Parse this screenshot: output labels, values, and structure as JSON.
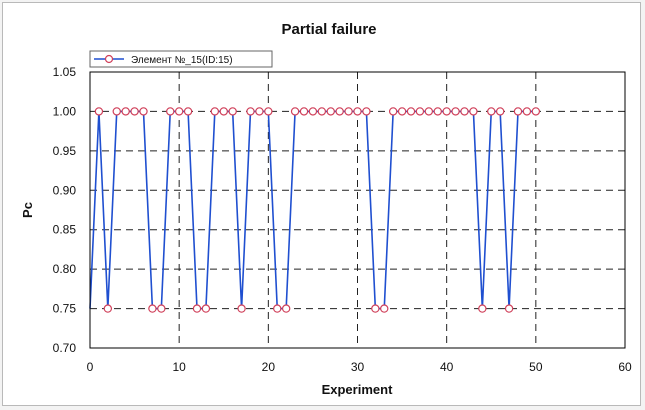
{
  "chart_data": {
    "type": "line",
    "title": "Partial failure",
    "xlabel": "Experiment",
    "ylabel": "Pc",
    "xlim": [
      0,
      60
    ],
    "ylim": [
      0.7,
      1.05
    ],
    "x_ticks": [
      "0",
      "10",
      "20",
      "30",
      "40",
      "50",
      "60"
    ],
    "y_ticks": [
      "0.70",
      "0.75",
      "0.80",
      "0.85",
      "0.90",
      "0.95",
      "1.00",
      "1.05"
    ],
    "grid": true,
    "legend_position": "top-left",
    "series": [
      {
        "name": "Элемент №_15(ID:15)",
        "line_color": "#1f4fd0",
        "marker_color": "#d0405a",
        "x": [
          0,
          1,
          2,
          3,
          4,
          5,
          6,
          7,
          8,
          9,
          10,
          11,
          12,
          13,
          14,
          15,
          16,
          17,
          18,
          19,
          20,
          21,
          22,
          23,
          24,
          25,
          26,
          27,
          28,
          29,
          30,
          31,
          32,
          33,
          34,
          35,
          36,
          37,
          38,
          39,
          40,
          41,
          42,
          43,
          44,
          45,
          46,
          47,
          48,
          49,
          50
        ],
        "values": [
          0.75,
          1.0,
          0.75,
          1.0,
          1.0,
          1.0,
          1.0,
          0.75,
          0.75,
          1.0,
          1.0,
          1.0,
          0.75,
          0.75,
          1.0,
          1.0,
          1.0,
          0.75,
          1.0,
          1.0,
          1.0,
          0.75,
          0.75,
          1.0,
          1.0,
          1.0,
          1.0,
          1.0,
          1.0,
          1.0,
          1.0,
          1.0,
          0.75,
          0.75,
          1.0,
          1.0,
          1.0,
          1.0,
          1.0,
          1.0,
          1.0,
          1.0,
          1.0,
          1.0,
          0.75,
          1.0,
          1.0,
          0.75,
          1.0,
          1.0,
          1.0
        ]
      }
    ]
  }
}
